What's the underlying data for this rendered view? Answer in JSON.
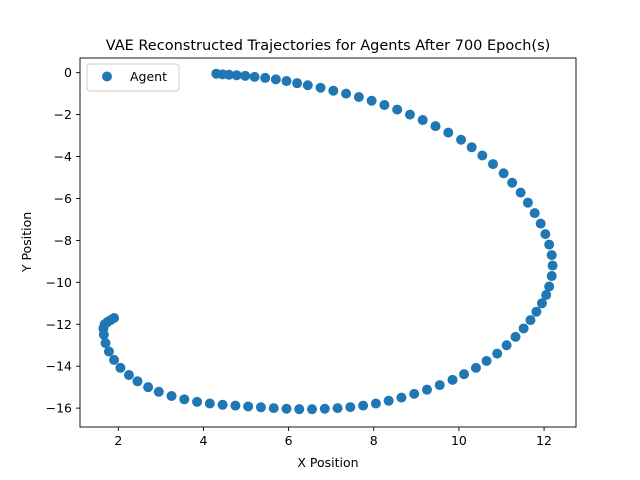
{
  "chart_data": {
    "type": "scatter",
    "title": "VAE Reconstructed Trajectories for Agents After 700 Epoch(s)",
    "xlabel": "X Position",
    "ylabel": "Y Position",
    "xlim": [
      1.1,
      12.75
    ],
    "ylim": [
      -16.9,
      0.7
    ],
    "xticks": [
      2,
      4,
      6,
      8,
      10,
      12
    ],
    "yticks": [
      0,
      -2,
      -4,
      -6,
      -8,
      -10,
      -12,
      -14,
      -16
    ],
    "xtick_labels": [
      "2",
      "4",
      "6",
      "8",
      "10",
      "12"
    ],
    "ytick_labels": [
      "0",
      "−2",
      "−4",
      "−6",
      "−8",
      "−10",
      "−12",
      "−14",
      "−16"
    ],
    "grid": false,
    "legend_position": "top-left",
    "series": [
      {
        "name": "Agent",
        "color": "#1f77b4",
        "x": [
          4.3,
          4.45,
          4.6,
          4.78,
          4.98,
          5.2,
          5.45,
          5.7,
          5.95,
          6.2,
          6.45,
          6.75,
          7.05,
          7.35,
          7.65,
          7.95,
          8.25,
          8.55,
          8.85,
          9.15,
          9.45,
          9.75,
          10.05,
          10.3,
          10.55,
          10.8,
          11.05,
          11.25,
          11.45,
          11.62,
          11.78,
          11.92,
          12.03,
          12.12,
          12.18,
          12.2,
          12.18,
          12.12,
          12.05,
          11.95,
          11.82,
          11.68,
          11.52,
          11.33,
          11.12,
          10.9,
          10.65,
          10.4,
          10.12,
          9.85,
          9.55,
          9.25,
          8.95,
          8.65,
          8.35,
          8.05,
          7.75,
          7.45,
          7.15,
          6.85,
          6.55,
          6.25,
          5.95,
          5.65,
          5.35,
          5.05,
          4.75,
          4.45,
          4.15,
          3.85,
          3.55,
          3.25,
          2.95,
          2.7,
          2.45,
          2.25,
          2.05,
          1.9,
          1.78,
          1.7,
          1.66,
          1.65,
          1.68,
          1.74,
          1.82,
          1.9
        ],
        "y": [
          -0.05,
          -0.08,
          -0.1,
          -0.12,
          -0.15,
          -0.2,
          -0.25,
          -0.32,
          -0.4,
          -0.5,
          -0.6,
          -0.72,
          -0.86,
          -1.0,
          -1.16,
          -1.34,
          -1.54,
          -1.76,
          -2.0,
          -2.26,
          -2.55,
          -2.86,
          -3.2,
          -3.56,
          -3.95,
          -4.36,
          -4.8,
          -5.25,
          -5.72,
          -6.2,
          -6.7,
          -7.2,
          -7.7,
          -8.2,
          -8.7,
          -9.2,
          -9.7,
          -10.2,
          -10.6,
          -11.0,
          -11.4,
          -11.8,
          -12.2,
          -12.6,
          -13.0,
          -13.4,
          -13.75,
          -14.08,
          -14.38,
          -14.65,
          -14.9,
          -15.12,
          -15.32,
          -15.5,
          -15.65,
          -15.78,
          -15.88,
          -15.95,
          -16.0,
          -16.03,
          -16.05,
          -16.05,
          -16.03,
          -16.0,
          -15.96,
          -15.92,
          -15.88,
          -15.84,
          -15.78,
          -15.7,
          -15.58,
          -15.42,
          -15.22,
          -15.0,
          -14.72,
          -14.42,
          -14.08,
          -13.7,
          -13.3,
          -12.9,
          -12.5,
          -12.2,
          -12.0,
          -11.9,
          -11.8,
          -11.7
        ]
      }
    ]
  }
}
